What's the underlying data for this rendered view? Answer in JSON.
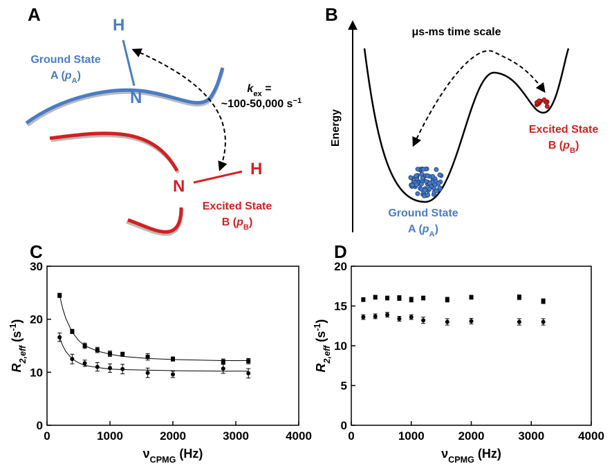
{
  "panel_a": {
    "label": "A",
    "h_top": "H",
    "n_top": "N",
    "n_bottom": "N",
    "h_bottom": "H",
    "ground_state": {
      "line1": "Ground State",
      "line2": {
        "prefix": "A (",
        "italic": "p",
        "sub": "A",
        "suffix": ")"
      }
    },
    "rate": {
      "k": "k",
      "k_sub": "ex",
      "eq": " =",
      "value": "~100-50,000 s",
      "sup": "−1"
    },
    "excited_state": {
      "line1": "Excited State",
      "line2": {
        "prefix": "B (",
        "italic": "p",
        "sub": "B",
        "suffix": ")"
      }
    }
  },
  "panel_b": {
    "label": "B",
    "axis_label": "Energy",
    "time_scale": "μs-ms time scale",
    "excited_state": {
      "line1": "Excited State",
      "line2": {
        "prefix": "B (",
        "italic": "p",
        "sub": "B",
        "suffix": ")"
      }
    },
    "ground_state": {
      "line1": "Ground State",
      "line2": {
        "prefix": "A (",
        "italic": "p",
        "sub": "A",
        "suffix": ")"
      }
    }
  },
  "chart_data": [
    {
      "type": "scatter",
      "panel": "C",
      "xlabel": {
        "main": "ν",
        "sub": "CPMG",
        "suffix": " (Hz)"
      },
      "ylabel": {
        "main": "R",
        "sub": "2,eff",
        "suffix": " (s",
        "sup": "-1",
        "end": ")"
      },
      "xlim": [
        0,
        4000
      ],
      "xticks": [
        0,
        1000,
        2000,
        3000,
        4000
      ],
      "ylim": [
        0,
        30
      ],
      "yticks": [
        0,
        10,
        20,
        30
      ],
      "x": [
        200,
        400,
        600,
        800,
        1000,
        1200,
        1600,
        2000,
        2800,
        3200
      ],
      "series": [
        {
          "marker": "square",
          "color": "#000000",
          "values": [
            24.5,
            17.7,
            15.0,
            14.2,
            13.5,
            13.4,
            12.9,
            12.5,
            12.0,
            12.1
          ],
          "errors": [
            0.4,
            0.4,
            0.5,
            0.5,
            0.5,
            0.4,
            0.6,
            0.4,
            0.5,
            0.5
          ],
          "fit": {
            "x": [
              200,
              250,
              300,
              400,
              500,
              600,
              800,
              1000,
              1200,
              1600,
              2000,
              2800,
              3200
            ],
            "values": [
              24.5,
              22.0,
              20.1,
              17.6,
              16.0,
              15.0,
              14.0,
              13.4,
              13.0,
              12.6,
              12.4,
              12.2,
              12.2
            ]
          }
        },
        {
          "marker": "circle",
          "color": "#000000",
          "values": [
            16.6,
            12.5,
            11.7,
            11.0,
            10.8,
            10.6,
            9.9,
            9.6,
            10.7,
            9.8
          ],
          "errors": [
            0.8,
            0.9,
            0.6,
            0.8,
            0.8,
            0.9,
            0.9,
            0.6,
            0.9,
            0.9
          ],
          "fit": {
            "x": [
              200,
              250,
              300,
              400,
              500,
              600,
              800,
              1000,
              1200,
              1600,
              2000,
              2800,
              3200
            ],
            "values": [
              16.6,
              15.0,
              13.9,
              12.5,
              11.8,
              11.3,
              10.9,
              10.6,
              10.5,
              10.4,
              10.3,
              10.2,
              10.2
            ]
          }
        }
      ]
    },
    {
      "type": "scatter",
      "panel": "D",
      "xlabel": {
        "main": "ν",
        "sub": "CPMG",
        "suffix": " (Hz)"
      },
      "ylabel": {
        "main": "R",
        "sub": "2,eff",
        "suffix": " (s",
        "sup": "-1",
        "end": ")"
      },
      "xlim": [
        0,
        4000
      ],
      "xticks": [
        0,
        1000,
        2000,
        3000,
        4000
      ],
      "ylim": [
        0,
        20
      ],
      "yticks": [
        0,
        5,
        10,
        15,
        20
      ],
      "x": [
        200,
        400,
        600,
        800,
        1000,
        1200,
        1600,
        2000,
        2800,
        3200
      ],
      "series": [
        {
          "marker": "square",
          "color": "#000000",
          "values": [
            15.8,
            16.1,
            16.0,
            16.0,
            15.8,
            16.0,
            15.8,
            16.1,
            16.1,
            15.6
          ],
          "errors": [
            0.25,
            0.25,
            0.25,
            0.3,
            0.3,
            0.25,
            0.3,
            0.25,
            0.3,
            0.3
          ]
        },
        {
          "marker": "circle",
          "color": "#000000",
          "values": [
            13.6,
            13.7,
            13.9,
            13.4,
            13.6,
            13.2,
            13.0,
            13.1,
            13.0,
            13.0
          ],
          "errors": [
            0.3,
            0.3,
            0.3,
            0.3,
            0.3,
            0.4,
            0.4,
            0.35,
            0.4,
            0.4
          ]
        }
      ]
    }
  ]
}
